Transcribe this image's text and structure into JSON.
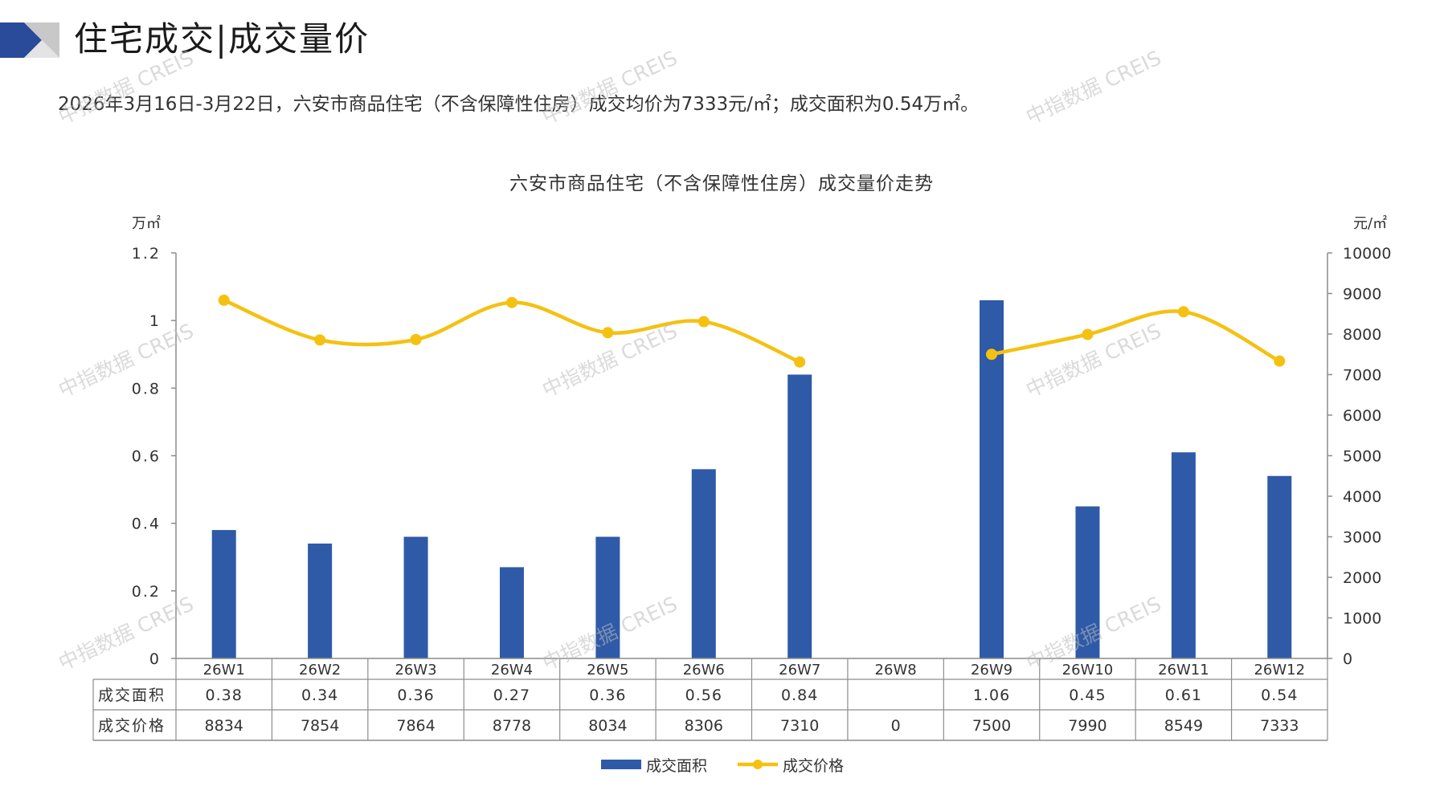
{
  "header": {
    "title": "住宅成交|成交量价"
  },
  "summary": "2026年3月16日-3月22日，六安市商品住宅（不含保障性住房）成交均价为7333元/㎡；成交面积为0.54万㎡。",
  "watermark_text": "中指数据 CREIS",
  "colors": {
    "bar": "#2e5aa8",
    "line": "#f5c111",
    "axis": "#8c8c8c",
    "logo_dark": "#2a4a9a",
    "logo_light": "#c8c8c8"
  },
  "chart_data": {
    "type": "bar",
    "title": "六安市商品住宅（不含保障性住房）成交量价走势",
    "categories": [
      "26W1",
      "26W2",
      "26W3",
      "26W4",
      "26W5",
      "26W6",
      "26W7",
      "26W8",
      "26W9",
      "26W10",
      "26W11",
      "26W12"
    ],
    "series": [
      {
        "name": "成交面积",
        "type": "bar",
        "axis": "left",
        "values": [
          0.38,
          0.34,
          0.36,
          0.27,
          0.36,
          0.56,
          0.84,
          null,
          1.06,
          0.45,
          0.61,
          0.54
        ]
      },
      {
        "name": "成交价格",
        "type": "line",
        "axis": "right",
        "values": [
          8834,
          7854,
          7864,
          8778,
          8034,
          8306,
          7310,
          0,
          7500,
          7990,
          8549,
          7333
        ]
      }
    ],
    "left_axis": {
      "unit": "万㎡",
      "ylim": [
        0,
        1.2
      ],
      "ticks": [
        "0",
        "0.2",
        "0.4",
        "0.6",
        "0.8",
        "1",
        "1.2"
      ]
    },
    "right_axis": {
      "unit": "元/㎡",
      "ylim": [
        0,
        10000
      ],
      "ticks": [
        "0",
        "1000",
        "2000",
        "3000",
        "4000",
        "5000",
        "6000",
        "7000",
        "8000",
        "9000",
        "10000"
      ]
    },
    "table_rows": [
      {
        "label": "成交面积",
        "cells": [
          "0.38",
          "0.34",
          "0.36",
          "0.27",
          "0.36",
          "0.56",
          "0.84",
          "",
          "1.06",
          "0.45",
          "0.61",
          "0.54"
        ]
      },
      {
        "label": "成交价格",
        "cells": [
          "8834",
          "7854",
          "7864",
          "8778",
          "8034",
          "8306",
          "7310",
          "0",
          "7500",
          "7990",
          "8549",
          "7333"
        ]
      }
    ],
    "grid": false,
    "legend_position": "bottom"
  }
}
